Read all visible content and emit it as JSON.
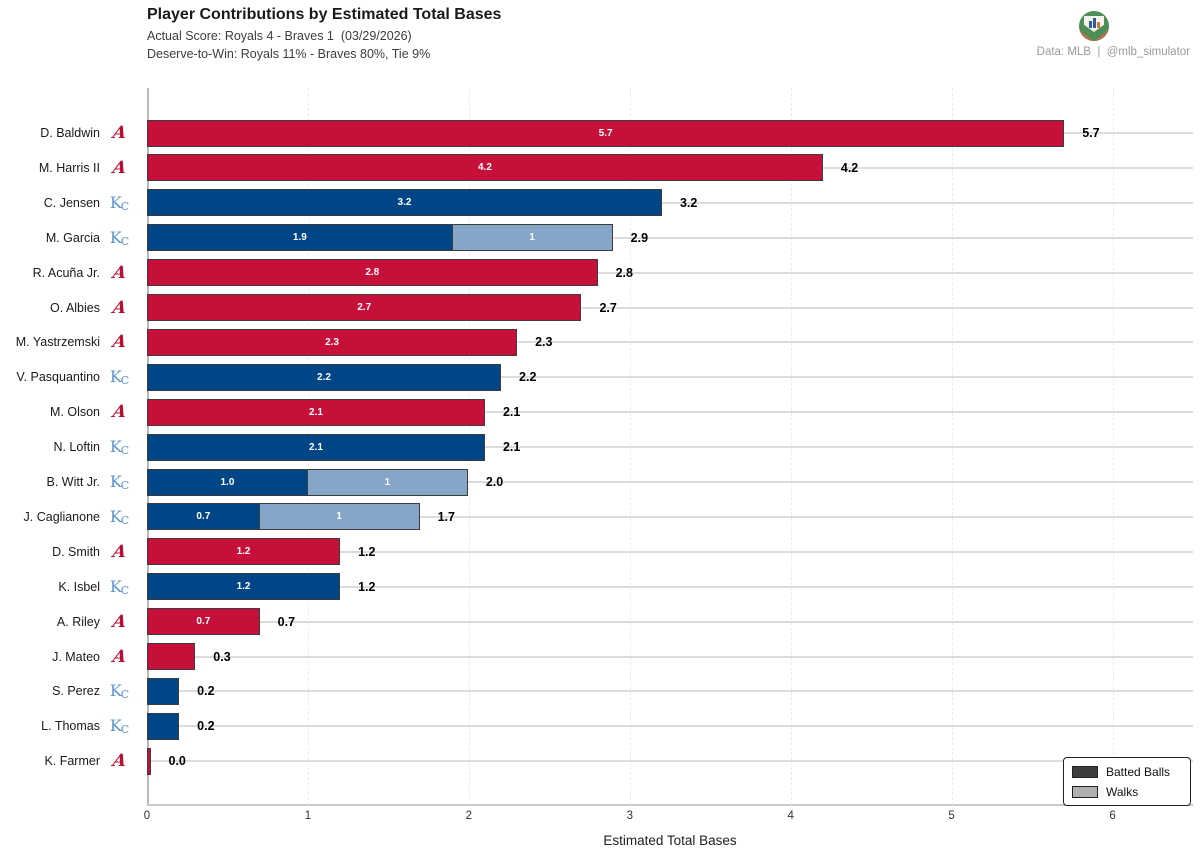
{
  "header": {
    "title": "Player Contributions by Estimated Total Bases",
    "subtitle1": "Actual Score: Royals 4 - Braves 1  (03/29/2026)",
    "subtitle2": "Deserve-to-Win: Royals 11% - Braves 80%, Tie 9%",
    "credit": "Data: MLB  |  @mlb_simulator",
    "logo_name": "mlb-simulator-badge"
  },
  "chart_data": {
    "type": "bar",
    "orientation": "horizontal",
    "title": "Player Contributions by Estimated Total Bases",
    "xlabel": "Estimated Total Bases",
    "ylabel": "",
    "xlim": [
      0,
      6.5
    ],
    "xticks": [
      "0",
      "1",
      "2",
      "3",
      "4",
      "5",
      "6"
    ],
    "grid": "light dashed vertical + light solid horizontal row lines",
    "legend_position": "lower right",
    "legend": [
      {
        "label": "Batted Balls",
        "swatch_color": "#3d3d3d"
      },
      {
        "label": "Walks",
        "swatch_color": "#b0b0b0"
      }
    ],
    "colors": {
      "braves_batted": "#c6103a",
      "royals_batted": "#004687",
      "royals_walks": "#85a6c9",
      "bar_edge": "#3c3c3c",
      "braves_logo": "#ba0c2f",
      "royals_logo": "#5d94ce"
    },
    "players": [
      {
        "name": "D. Baldwin",
        "team": "ATL",
        "batted": 5.7,
        "walks": 0,
        "batted_label": "5.7",
        "walks_label": "",
        "total_label": "5.7"
      },
      {
        "name": "M. Harris II",
        "team": "ATL",
        "batted": 4.2,
        "walks": 0,
        "batted_label": "4.2",
        "walks_label": "",
        "total_label": "4.2"
      },
      {
        "name": "C. Jensen",
        "team": "KC",
        "batted": 3.2,
        "walks": 0,
        "batted_label": "3.2",
        "walks_label": "",
        "total_label": "3.2"
      },
      {
        "name": "M. Garcia",
        "team": "KC",
        "batted": 1.9,
        "walks": 1,
        "batted_label": "1.9",
        "walks_label": "1",
        "total_label": "2.9"
      },
      {
        "name": "R. Acuña Jr.",
        "team": "ATL",
        "batted": 2.8,
        "walks": 0,
        "batted_label": "2.8",
        "walks_label": "",
        "total_label": "2.8"
      },
      {
        "name": "O. Albies",
        "team": "ATL",
        "batted": 2.7,
        "walks": 0,
        "batted_label": "2.7",
        "walks_label": "",
        "total_label": "2.7"
      },
      {
        "name": "M. Yastrzemski",
        "team": "ATL",
        "batted": 2.3,
        "walks": 0,
        "batted_label": "2.3",
        "walks_label": "",
        "total_label": "2.3"
      },
      {
        "name": "V. Pasquantino",
        "team": "KC",
        "batted": 2.2,
        "walks": 0,
        "batted_label": "2.2",
        "walks_label": "",
        "total_label": "2.2"
      },
      {
        "name": "M. Olson",
        "team": "ATL",
        "batted": 2.1,
        "walks": 0,
        "batted_label": "2.1",
        "walks_label": "",
        "total_label": "2.1"
      },
      {
        "name": "N. Loftin",
        "team": "KC",
        "batted": 2.1,
        "walks": 0,
        "batted_label": "2.1",
        "walks_label": "",
        "total_label": "2.1"
      },
      {
        "name": "B. Witt Jr.",
        "team": "KC",
        "batted": 1.0,
        "walks": 1,
        "batted_label": "1.0",
        "walks_label": "1",
        "total_label": "2.0"
      },
      {
        "name": "J. Caglianone",
        "team": "KC",
        "batted": 0.7,
        "walks": 1,
        "batted_label": "0.7",
        "walks_label": "1",
        "total_label": "1.7"
      },
      {
        "name": "D. Smith",
        "team": "ATL",
        "batted": 1.2,
        "walks": 0,
        "batted_label": "1.2",
        "walks_label": "",
        "total_label": "1.2"
      },
      {
        "name": "K. Isbel",
        "team": "KC",
        "batted": 1.2,
        "walks": 0,
        "batted_label": "1.2",
        "walks_label": "",
        "total_label": "1.2"
      },
      {
        "name": "A. Riley",
        "team": "ATL",
        "batted": 0.7,
        "walks": 0,
        "batted_label": "0.7",
        "walks_label": "",
        "total_label": "0.7"
      },
      {
        "name": "J. Mateo",
        "team": "ATL",
        "batted": 0.3,
        "walks": 0,
        "batted_label": "",
        "walks_label": "",
        "total_label": "0.3"
      },
      {
        "name": "S. Perez",
        "team": "KC",
        "batted": 0.2,
        "walks": 0,
        "batted_label": "",
        "walks_label": "",
        "total_label": "0.2"
      },
      {
        "name": "L. Thomas",
        "team": "KC",
        "batted": 0.2,
        "walks": 0,
        "batted_label": "",
        "walks_label": "",
        "total_label": "0.2"
      },
      {
        "name": "K. Farmer",
        "team": "ATL",
        "batted": 0.0,
        "walks": 0,
        "batted_label": "",
        "walks_label": "",
        "total_label": "0.0"
      }
    ]
  }
}
